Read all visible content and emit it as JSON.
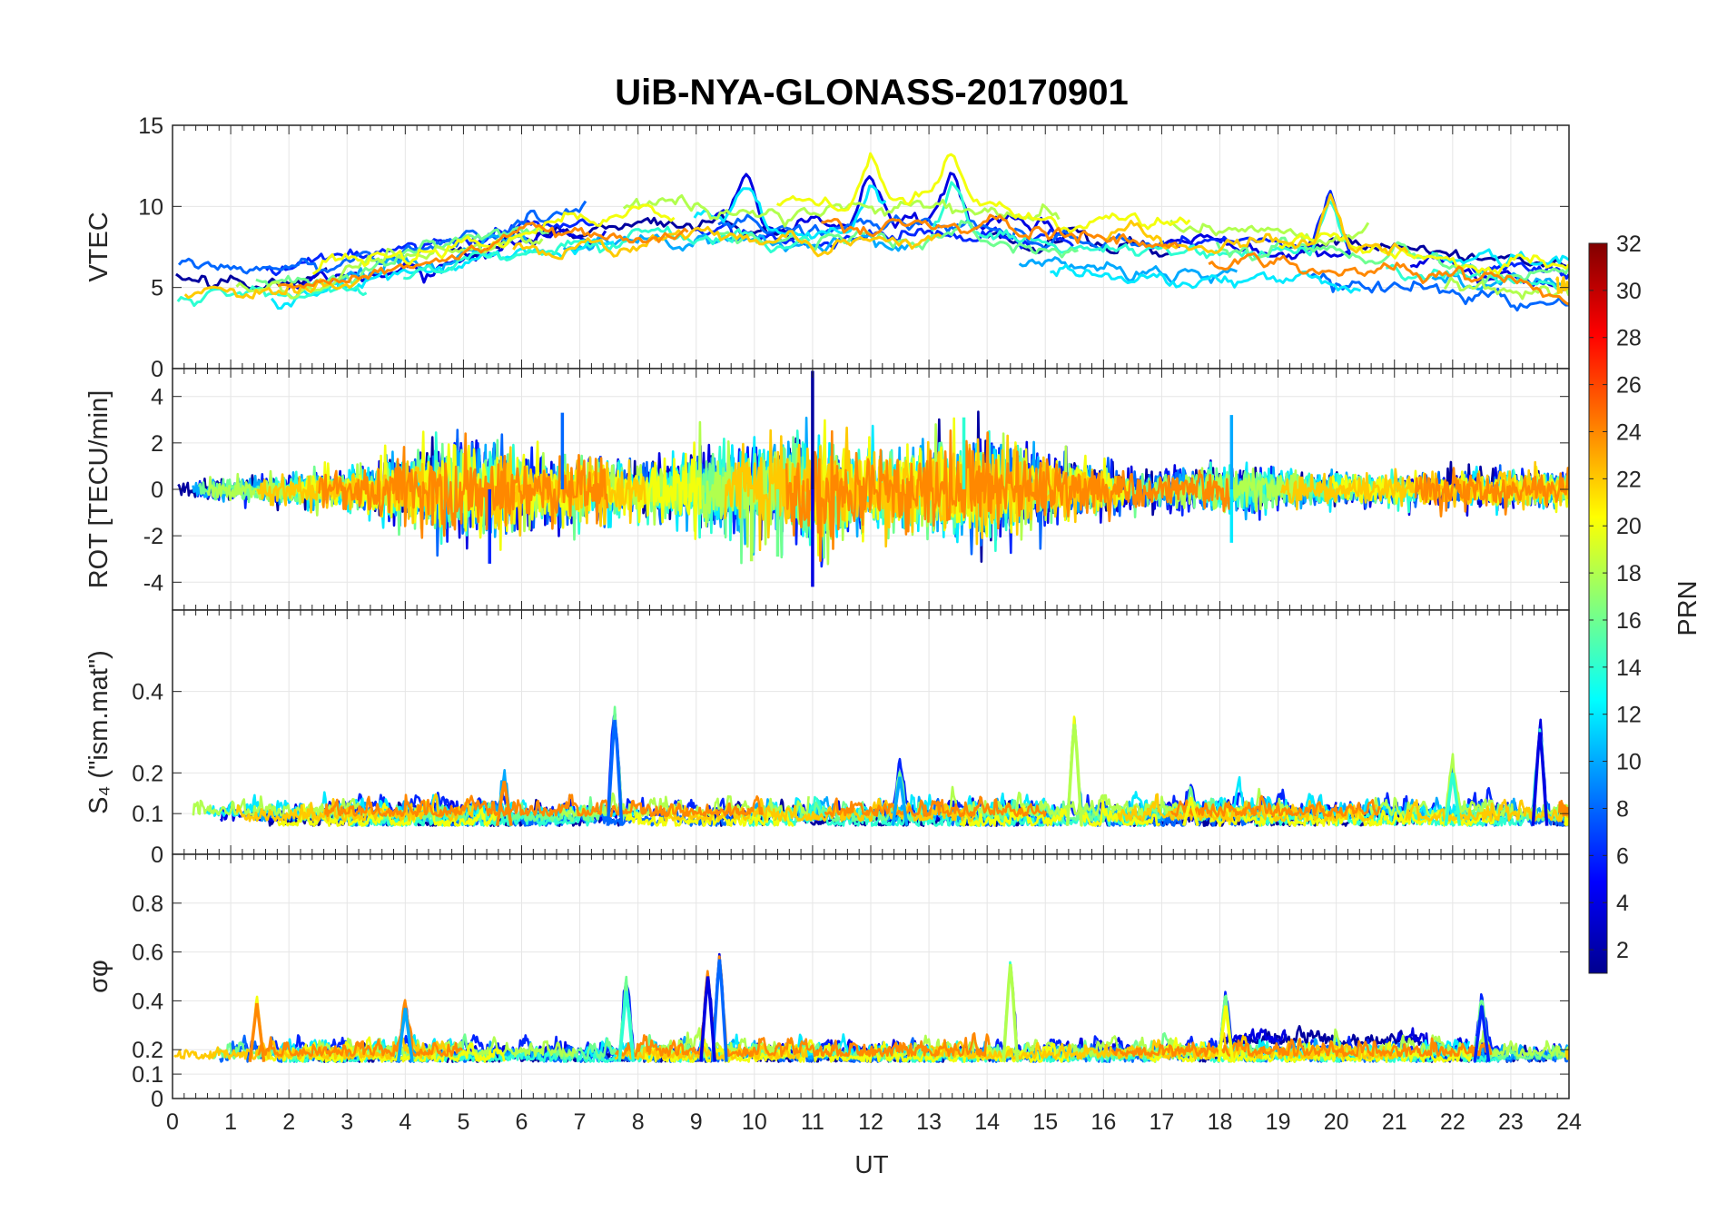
{
  "chart_data": {
    "title": "UiB-NYA-GLONASS-20170901",
    "xlabel": "UT",
    "x_ticks": [
      "0",
      "1",
      "2",
      "3",
      "4",
      "5",
      "6",
      "7",
      "8",
      "9",
      "10",
      "11",
      "12",
      "13",
      "14",
      "15",
      "16",
      "17",
      "18",
      "19",
      "20",
      "21",
      "22",
      "23",
      "24"
    ],
    "xlim": [
      0,
      24
    ],
    "colorbar": {
      "label": "PRN",
      "clim": [
        1,
        32
      ],
      "ticks": [
        "2",
        "4",
        "6",
        "8",
        "10",
        "12",
        "14",
        "16",
        "18",
        "20",
        "22",
        "24",
        "26",
        "28",
        "30",
        "32"
      ],
      "colormap": "jet"
    },
    "panels": [
      {
        "id": "vtec",
        "type": "line",
        "ylabel": "VTEC",
        "ylim": [
          0,
          15
        ],
        "y_ticks": [
          "0",
          "5",
          "10",
          "15"
        ],
        "approx_level_by_hour": [
          5.2,
          5.2,
          5.0,
          5.6,
          6.4,
          7.2,
          8.0,
          8.3,
          8.6,
          8.8,
          8.5,
          8.2,
          8.4,
          8.6,
          8.2,
          7.9,
          7.6,
          7.5,
          7.3,
          7.3,
          7.0,
          6.8,
          6.3,
          6.0,
          5.8
        ],
        "noise": 0.9,
        "peaks": [
          {
            "x": 9.9,
            "y": 11.5
          },
          {
            "x": 12.0,
            "y": 11.7
          },
          {
            "x": 13.4,
            "y": 11.9
          },
          {
            "x": 19.9,
            "y": 11.0
          }
        ]
      },
      {
        "id": "rot",
        "type": "line",
        "ylabel": "ROT [TECU/min]",
        "ylim": [
          -5.2,
          5.2
        ],
        "y_ticks": [
          "-4",
          "-2",
          "0",
          "2",
          "4"
        ],
        "approx_spread_by_hour": [
          0.2,
          0.3,
          0.4,
          0.5,
          0.9,
          1.4,
          1.1,
          0.9,
          0.7,
          1.0,
          1.3,
          1.5,
          1.1,
          1.2,
          1.4,
          0.9,
          0.6,
          0.5,
          0.6,
          0.5,
          0.4,
          0.4,
          0.5,
          0.5,
          0.4
        ],
        "spikes": [
          {
            "x": 11.0,
            "y": 5.1
          },
          {
            "x": 11.0,
            "y": -4.2
          },
          {
            "x": 5.45,
            "y": -3.2
          },
          {
            "x": 6.7,
            "y": 3.3
          },
          {
            "x": 18.2,
            "y": 3.2
          },
          {
            "x": 18.2,
            "y": -2.3
          },
          {
            "x": 13.6,
            "y": 3.1
          },
          {
            "x": 10.4,
            "y": -2.9
          },
          {
            "x": 9.95,
            "y": -3.1
          }
        ]
      },
      {
        "id": "s4",
        "type": "line",
        "ylabel": "S₄ (\"ism.mat\")",
        "ylim": [
          0,
          0.6
        ],
        "y_ticks": [
          "0",
          "0.1",
          "0.2",
          "0.4"
        ],
        "baseline": 0.07,
        "noise": 0.02,
        "peaks": [
          {
            "x": 7.6,
            "y": 0.33
          },
          {
            "x": 15.5,
            "y": 0.32
          },
          {
            "x": 23.5,
            "y": 0.3
          },
          {
            "x": 22.0,
            "y": 0.2
          },
          {
            "x": 5.7,
            "y": 0.18
          },
          {
            "x": 12.5,
            "y": 0.19
          },
          {
            "x": 17.5,
            "y": 0.14
          }
        ]
      },
      {
        "id": "sigma_phi",
        "type": "line",
        "ylabel": "σφ",
        "ylim": [
          0,
          1
        ],
        "y_ticks": [
          "0",
          "0.1",
          "0.2",
          "0.4",
          "0.6",
          "0.8"
        ],
        "baseline": 0.15,
        "noise": 0.03,
        "peaks": [
          {
            "x": 9.4,
            "y": 0.57
          },
          {
            "x": 14.4,
            "y": 0.55
          },
          {
            "x": 9.2,
            "y": 0.5
          },
          {
            "x": 7.8,
            "y": 0.44
          },
          {
            "x": 1.45,
            "y": 0.39
          },
          {
            "x": 4.0,
            "y": 0.37
          },
          {
            "x": 18.1,
            "y": 0.38
          },
          {
            "x": 22.5,
            "y": 0.38
          }
        ]
      }
    ],
    "series_prn": [
      2,
      4,
      6,
      8,
      10,
      12,
      14,
      16,
      18,
      20,
      22,
      24
    ]
  }
}
